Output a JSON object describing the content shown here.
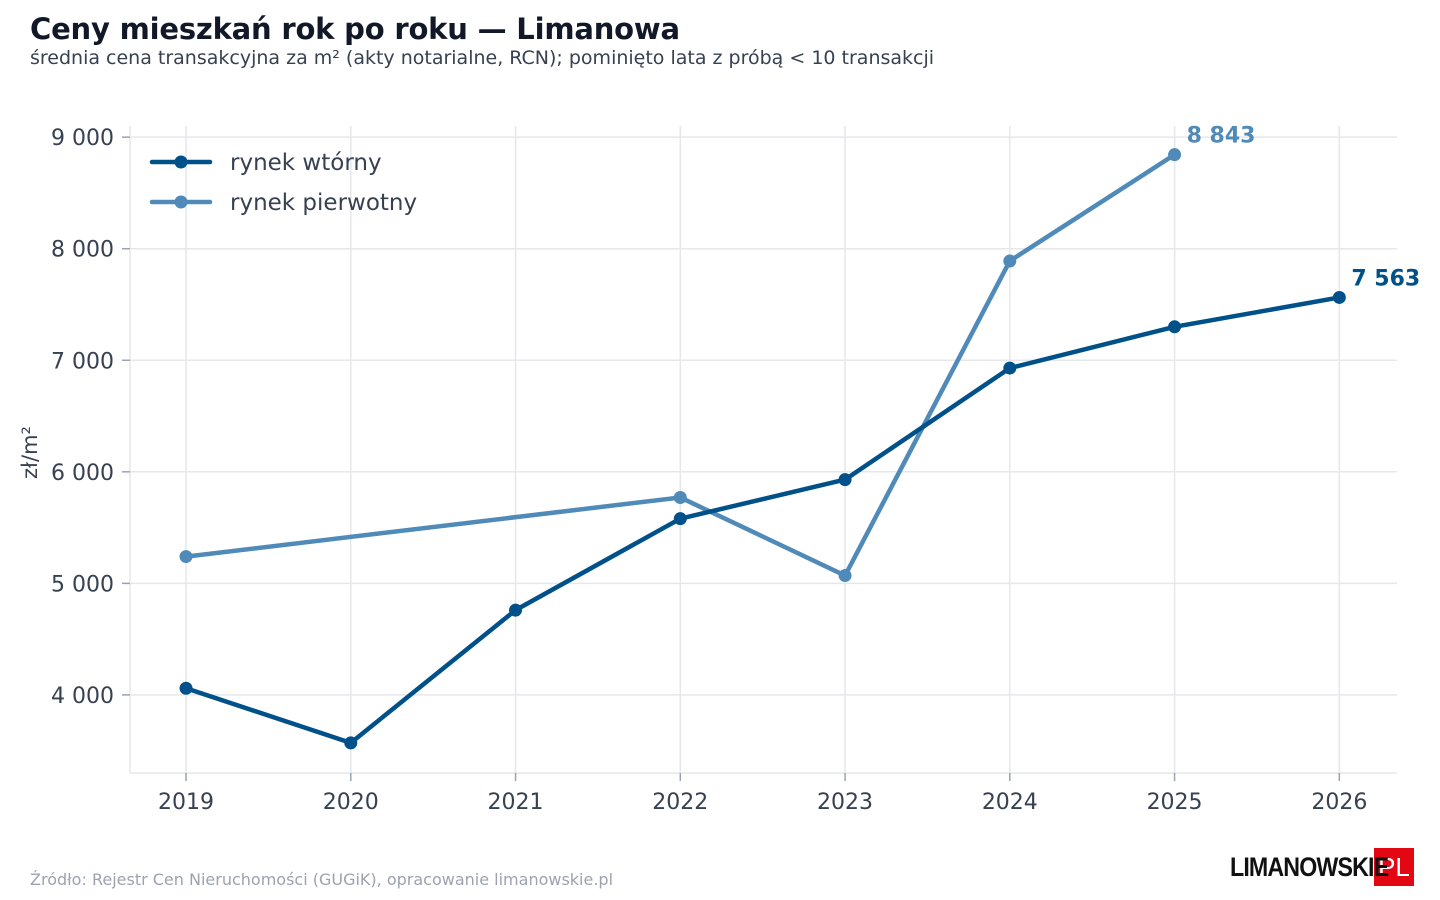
{
  "header": {
    "title": "Ceny mieszkań rok po roku — Limanowa",
    "subtitle": "średnia cena transakcyjna za m² (akty notarialne, RCN); pominięto lata z próbą < 10 transakcji"
  },
  "footer": {
    "source": "Źródło: Rejestr Cen Nieruchomości (GUGiK), opracowanie limanowskie.pl",
    "logo_text": "LIMANOWSKIE",
    "logo_box": "PL"
  },
  "colors": {
    "secondary": "#00518a",
    "primary": "#4f8ab9",
    "grid": "#e5e7eb",
    "logo_red": "#e30613"
  },
  "chart_data": {
    "type": "line",
    "ylabel": "zł/m²",
    "xlabel": "",
    "x": [
      2019,
      2020,
      2021,
      2022,
      2023,
      2024,
      2025,
      2026
    ],
    "xlim": [
      2018.66,
      2026.35
    ],
    "ylim": [
      3300,
      9100
    ],
    "yticks": [
      4000,
      5000,
      6000,
      7000,
      8000,
      9000
    ],
    "ytick_labels": [
      "4 000",
      "5 000",
      "6 000",
      "7 000",
      "8 000",
      "9 000"
    ],
    "grid": true,
    "legend_position": "top-left",
    "series": [
      {
        "name": "rynek wtórny",
        "color": "#00518a",
        "x": [
          2019,
          2020,
          2021,
          2022,
          2023,
          2024,
          2025,
          2026
        ],
        "values": [
          4060,
          3570,
          4760,
          5580,
          5930,
          6930,
          7300,
          7563
        ],
        "end_label": "7 563"
      },
      {
        "name": "rynek pierwotny",
        "color": "#4f8ab9",
        "x": [
          2019,
          2022,
          2023,
          2024,
          2025
        ],
        "values": [
          5240,
          5770,
          5070,
          7890,
          8843
        ],
        "end_label": "8 843"
      }
    ]
  }
}
